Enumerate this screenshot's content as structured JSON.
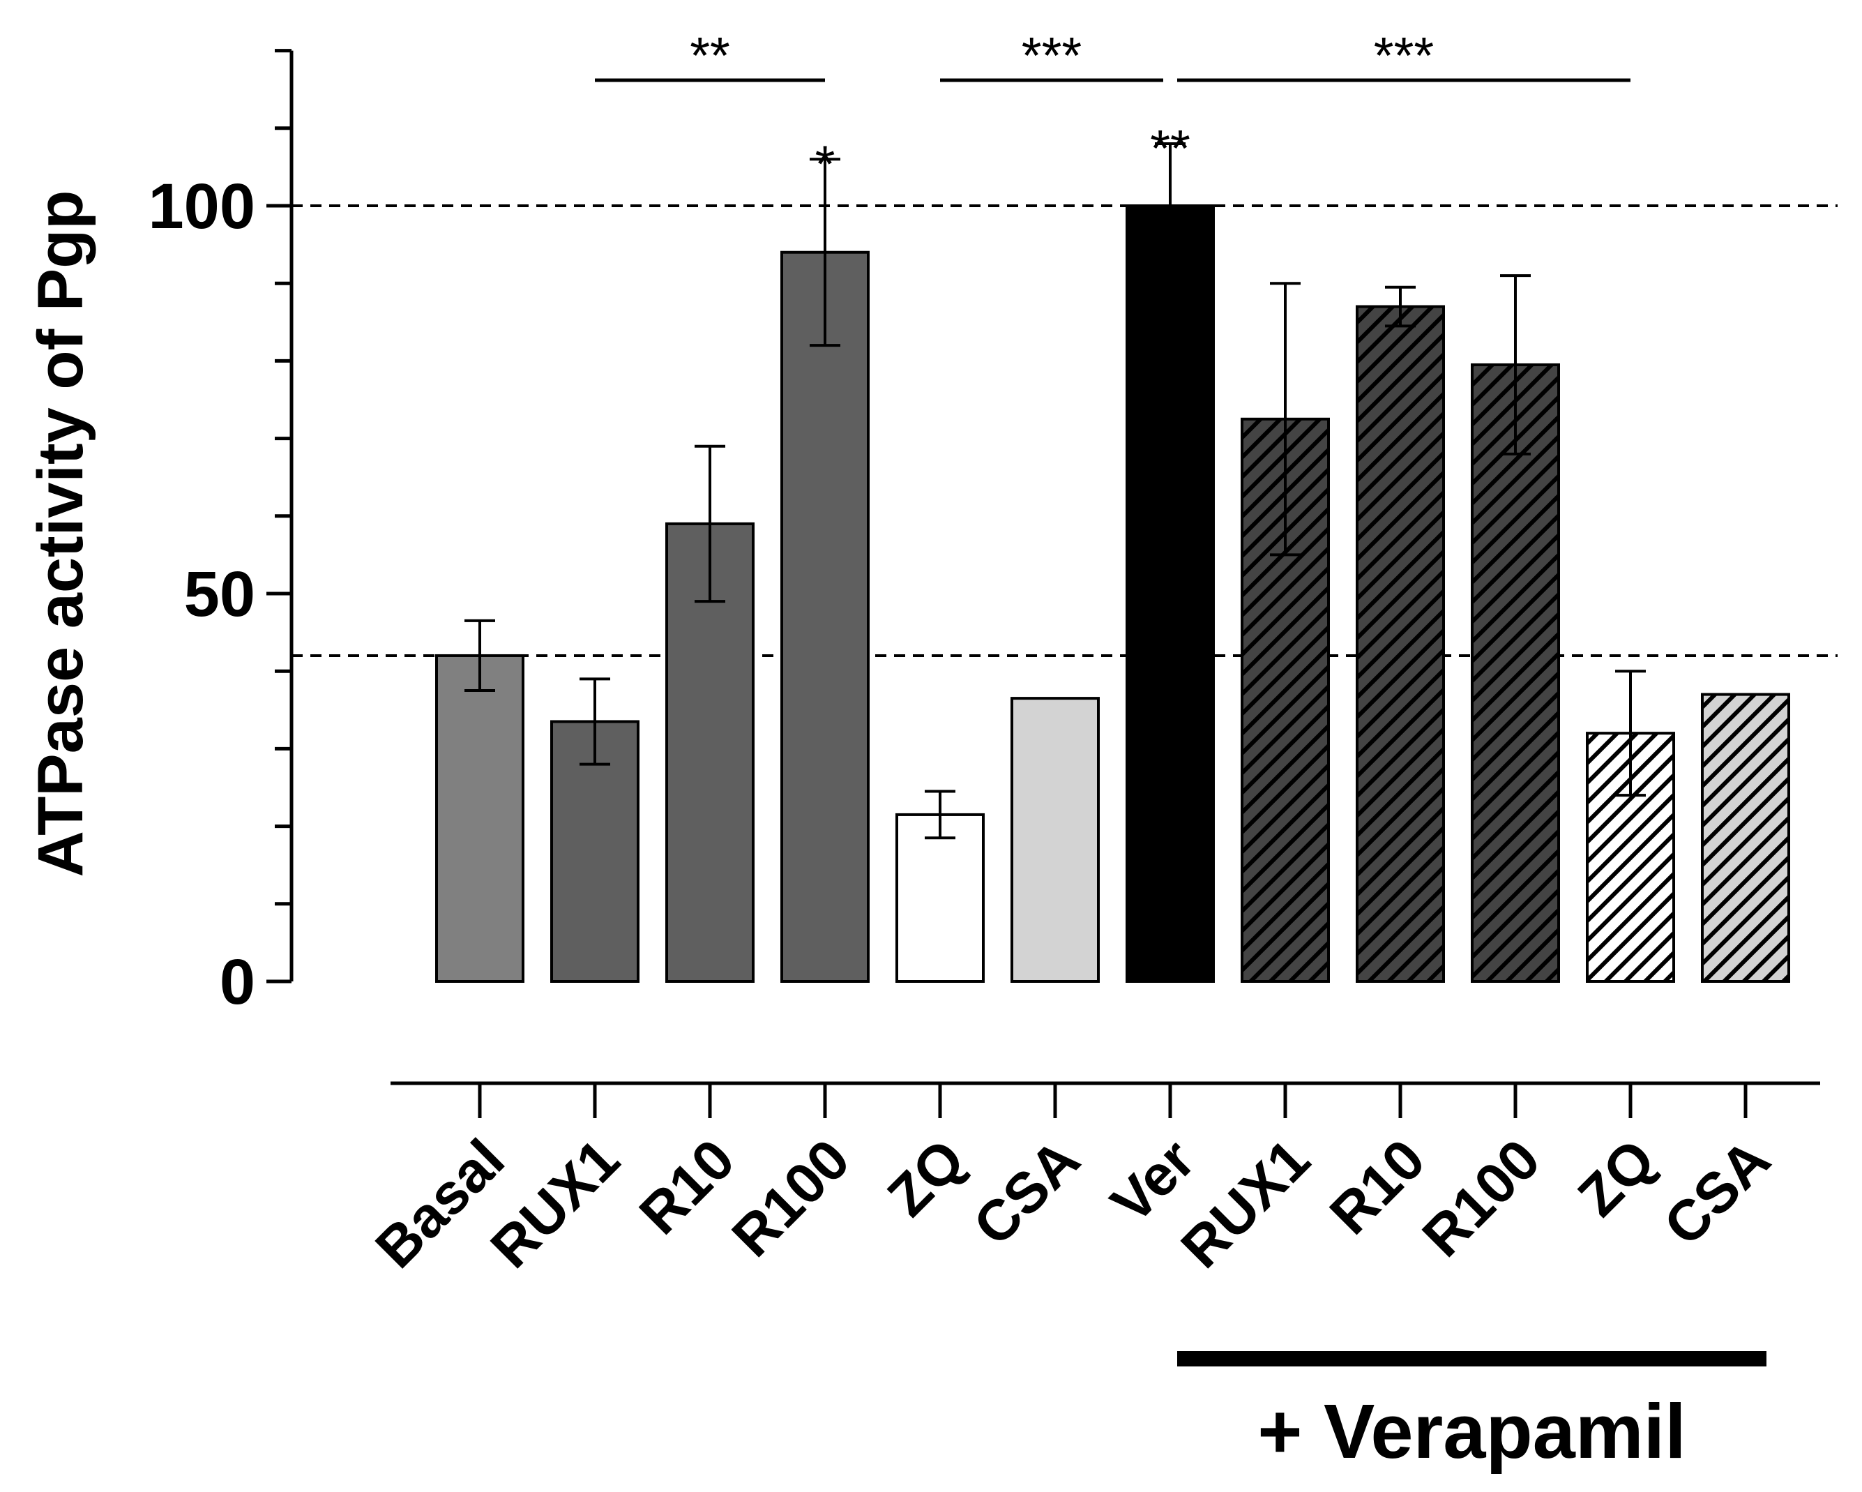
{
  "chart_data": {
    "type": "bar",
    "ylabel": "ATPase activity of Pgp",
    "ylim": [
      0,
      120
    ],
    "yticks": [
      0,
      50,
      100
    ],
    "minor_tick_step": 10,
    "reference_lines": [
      100,
      42
    ],
    "categories": [
      "Basal",
      "RUX1",
      "R10",
      "R100",
      "ZQ",
      "CSA",
      "Ver",
      "RUX1",
      "R10",
      "R100",
      "ZQ",
      "CSA"
    ],
    "values": [
      42,
      33.5,
      59,
      94,
      21.5,
      36.5,
      100,
      72.5,
      87,
      79.5,
      32,
      37
    ],
    "errors": [
      4.5,
      5.5,
      10,
      12,
      3,
      0,
      8,
      17.5,
      2.5,
      11.5,
      8,
      0
    ],
    "fills": [
      "#808080",
      "#5f5f5f",
      "#5f5f5f",
      "#5f5f5f",
      "#ffffff",
      "#d3d3d3",
      "#000000",
      "#444444",
      "#444444",
      "#444444",
      "#ffffff",
      "#d3d3d3"
    ],
    "hatched": [
      false,
      false,
      false,
      false,
      false,
      false,
      false,
      true,
      true,
      true,
      true,
      true
    ],
    "bar_stars": [
      {
        "index": 3,
        "label": "*"
      },
      {
        "index": 6,
        "label": "**"
      }
    ],
    "comparisons": [
      {
        "from": 1,
        "to": 3,
        "label": "**"
      },
      {
        "from": 4,
        "to": 6,
        "label": "***"
      },
      {
        "from": 6,
        "to": 10,
        "label": "***"
      }
    ],
    "group_label": {
      "text": "+ Verapamil",
      "from": 6,
      "to": 11
    }
  }
}
